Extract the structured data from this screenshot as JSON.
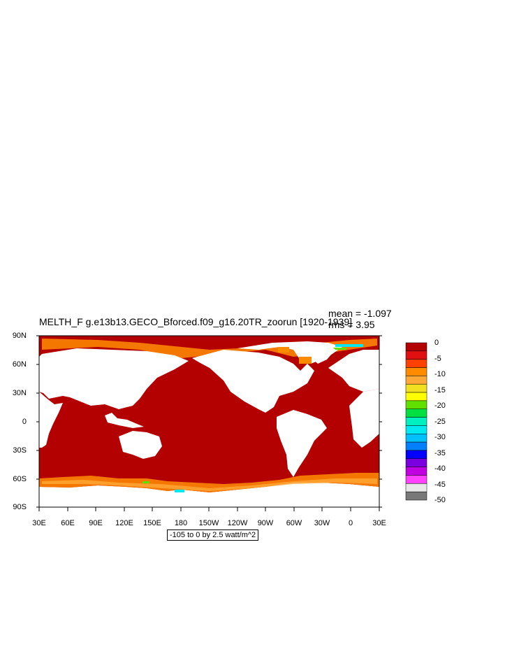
{
  "header": {
    "title": "MELTH_F g.e13b13.GECO_Bforced.f09_g16.20TR_zoorun [1920-1939]",
    "mean": "mean = -1.097",
    "rms": "rms = 3.95"
  },
  "axes": {
    "lat_labels": [
      "90N",
      "60N",
      "30N",
      "0",
      "30S",
      "60S",
      "90S"
    ],
    "lon_labels": [
      "30E",
      "60E",
      "90E",
      "120E",
      "150E",
      "180",
      "150W",
      "120W",
      "90W",
      "60W",
      "30W",
      "0",
      "30E"
    ]
  },
  "colorbar": {
    "labels": [
      "0",
      "-5",
      "-10",
      "-15",
      "-20",
      "-25",
      "-30",
      "-35",
      "-40",
      "-45",
      "-50"
    ],
    "colors": [
      "#b30000",
      "#e01010",
      "#ff4000",
      "#ff8c00",
      "#ffa838",
      "#f0e020",
      "#ffff00",
      "#60e000",
      "#00e040",
      "#00f0c0",
      "#00e8f0",
      "#00c0ff",
      "#0080ff",
      "#0000ff",
      "#7a00e0",
      "#c000e0",
      "#ff40ff",
      "#e8e8e8",
      "#787878"
    ]
  },
  "info": "-105 to 0 by 2.5 watt/m^2",
  "colors": {
    "ocean_base": "#b30000",
    "land": "#ffffff"
  }
}
